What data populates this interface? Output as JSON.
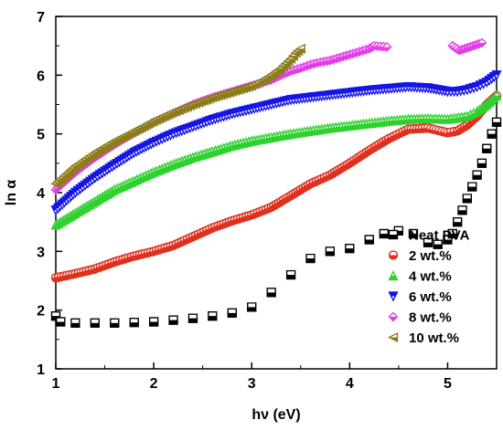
{
  "chart_data": {
    "type": "scatter",
    "title": "",
    "xlabel": "hν (eV)",
    "ylabel": "ln α",
    "xlim": [
      1,
      5.5
    ],
    "ylim": [
      1,
      7
    ],
    "xticks": [
      "1",
      "2",
      "3",
      "4",
      "5"
    ],
    "yticks": [
      "1",
      "2",
      "3",
      "4",
      "5",
      "6",
      "7"
    ],
    "grid": false,
    "legend_position": "bottom-right",
    "series": [
      {
        "name": "Neat PVA",
        "color": "#000000",
        "marker": "half-filled-square",
        "points": [
          [
            1.0,
            1.9
          ],
          [
            1.05,
            1.8
          ],
          [
            1.2,
            1.78
          ],
          [
            1.4,
            1.78
          ],
          [
            1.6,
            1.78
          ],
          [
            1.8,
            1.79
          ],
          [
            2.0,
            1.8
          ],
          [
            2.2,
            1.83
          ],
          [
            2.4,
            1.86
          ],
          [
            2.6,
            1.9
          ],
          [
            2.8,
            1.95
          ],
          [
            3.0,
            2.05
          ],
          [
            3.2,
            2.3
          ],
          [
            3.4,
            2.6
          ],
          [
            3.6,
            2.88
          ],
          [
            3.8,
            3.0
          ],
          [
            4.0,
            3.05
          ],
          [
            4.2,
            3.2
          ],
          [
            4.35,
            3.3
          ],
          [
            4.5,
            3.35
          ],
          [
            4.65,
            3.3
          ],
          [
            4.8,
            3.15
          ],
          [
            4.9,
            3.12
          ],
          [
            5.0,
            3.2
          ],
          [
            5.05,
            3.3
          ],
          [
            5.1,
            3.5
          ],
          [
            5.15,
            3.7
          ],
          [
            5.2,
            3.9
          ],
          [
            5.25,
            4.1
          ],
          [
            5.3,
            4.3
          ],
          [
            5.35,
            4.5
          ],
          [
            5.4,
            4.75
          ],
          [
            5.45,
            5.0
          ],
          [
            5.5,
            5.2
          ]
        ]
      },
      {
        "name": "2 wt.%",
        "color": "#e0301e",
        "marker": "half-filled-circle",
        "points": [
          [
            1.0,
            2.55
          ],
          [
            1.2,
            2.62
          ],
          [
            1.4,
            2.7
          ],
          [
            1.6,
            2.82
          ],
          [
            1.8,
            2.92
          ],
          [
            2.0,
            3.0
          ],
          [
            2.2,
            3.1
          ],
          [
            2.4,
            3.25
          ],
          [
            2.6,
            3.4
          ],
          [
            2.8,
            3.52
          ],
          [
            3.0,
            3.62
          ],
          [
            3.2,
            3.75
          ],
          [
            3.4,
            3.95
          ],
          [
            3.6,
            4.15
          ],
          [
            3.8,
            4.3
          ],
          [
            4.0,
            4.5
          ],
          [
            4.2,
            4.72
          ],
          [
            4.4,
            4.92
          ],
          [
            4.6,
            5.08
          ],
          [
            4.8,
            5.1
          ],
          [
            5.0,
            5.02
          ],
          [
            5.1,
            5.05
          ],
          [
            5.2,
            5.15
          ],
          [
            5.3,
            5.3
          ],
          [
            5.4,
            5.5
          ],
          [
            5.5,
            5.65
          ]
        ]
      },
      {
        "name": "4 wt.%",
        "color": "#2ed12e",
        "marker": "half-filled-triangle-up",
        "points": [
          [
            1.0,
            3.45
          ],
          [
            1.2,
            3.65
          ],
          [
            1.4,
            3.85
          ],
          [
            1.6,
            4.05
          ],
          [
            1.8,
            4.2
          ],
          [
            2.0,
            4.35
          ],
          [
            2.2,
            4.48
          ],
          [
            2.4,
            4.6
          ],
          [
            2.6,
            4.7
          ],
          [
            2.8,
            4.8
          ],
          [
            3.0,
            4.88
          ],
          [
            3.2,
            4.94
          ],
          [
            3.4,
            5.0
          ],
          [
            3.6,
            5.05
          ],
          [
            3.8,
            5.1
          ],
          [
            4.0,
            5.14
          ],
          [
            4.2,
            5.18
          ],
          [
            4.4,
            5.22
          ],
          [
            4.6,
            5.25
          ],
          [
            4.8,
            5.26
          ],
          [
            5.0,
            5.25
          ],
          [
            5.2,
            5.3
          ],
          [
            5.3,
            5.38
          ],
          [
            5.4,
            5.5
          ],
          [
            5.5,
            5.65
          ]
        ]
      },
      {
        "name": "6 wt.%",
        "color": "#1515e6",
        "marker": "half-filled-triangle-down",
        "points": [
          [
            1.0,
            3.7
          ],
          [
            1.2,
            4.0
          ],
          [
            1.4,
            4.25
          ],
          [
            1.6,
            4.47
          ],
          [
            1.8,
            4.68
          ],
          [
            2.0,
            4.85
          ],
          [
            2.2,
            5.0
          ],
          [
            2.4,
            5.12
          ],
          [
            2.6,
            5.24
          ],
          [
            2.8,
            5.34
          ],
          [
            3.0,
            5.42
          ],
          [
            3.2,
            5.5
          ],
          [
            3.4,
            5.58
          ],
          [
            3.6,
            5.62
          ],
          [
            3.8,
            5.66
          ],
          [
            4.0,
            5.7
          ],
          [
            4.2,
            5.74
          ],
          [
            4.4,
            5.77
          ],
          [
            4.6,
            5.8
          ],
          [
            4.8,
            5.78
          ],
          [
            5.0,
            5.72
          ],
          [
            5.1,
            5.72
          ],
          [
            5.2,
            5.75
          ],
          [
            5.3,
            5.8
          ],
          [
            5.4,
            5.88
          ],
          [
            5.5,
            6.0
          ]
        ]
      },
      {
        "name": "8 wt.%",
        "color": "#e23ee8",
        "marker": "half-filled-diamond",
        "points": [
          [
            1.0,
            4.05
          ],
          [
            1.2,
            4.35
          ],
          [
            1.4,
            4.6
          ],
          [
            1.6,
            4.82
          ],
          [
            1.8,
            5.02
          ],
          [
            2.0,
            5.2
          ],
          [
            2.2,
            5.35
          ],
          [
            2.4,
            5.5
          ],
          [
            2.6,
            5.62
          ],
          [
            2.8,
            5.72
          ],
          [
            3.0,
            5.82
          ],
          [
            3.2,
            5.92
          ],
          [
            3.3,
            6.0
          ],
          [
            3.4,
            6.07
          ],
          [
            3.5,
            6.12
          ],
          [
            3.6,
            6.18
          ],
          [
            3.7,
            6.22
          ],
          [
            3.8,
            6.25
          ],
          [
            3.9,
            6.3
          ],
          [
            4.0,
            6.35
          ],
          [
            4.1,
            6.4
          ],
          [
            4.2,
            6.45
          ],
          [
            4.25,
            6.5
          ],
          [
            4.38,
            6.48
          ],
          [
            5.05,
            6.5
          ],
          [
            5.12,
            6.42
          ],
          [
            5.35,
            6.55
          ]
        ]
      },
      {
        "name": "10 wt.%",
        "color": "#8c7d1a",
        "marker": "half-filled-triangle-left",
        "points": [
          [
            1.0,
            4.15
          ],
          [
            1.2,
            4.45
          ],
          [
            1.4,
            4.68
          ],
          [
            1.6,
            4.88
          ],
          [
            1.8,
            5.05
          ],
          [
            2.0,
            5.22
          ],
          [
            2.2,
            5.37
          ],
          [
            2.4,
            5.5
          ],
          [
            2.6,
            5.62
          ],
          [
            2.8,
            5.72
          ],
          [
            3.0,
            5.82
          ],
          [
            3.1,
            5.9
          ],
          [
            3.2,
            6.0
          ],
          [
            3.3,
            6.12
          ],
          [
            3.4,
            6.28
          ],
          [
            3.45,
            6.38
          ],
          [
            3.5,
            6.45
          ]
        ]
      }
    ]
  }
}
